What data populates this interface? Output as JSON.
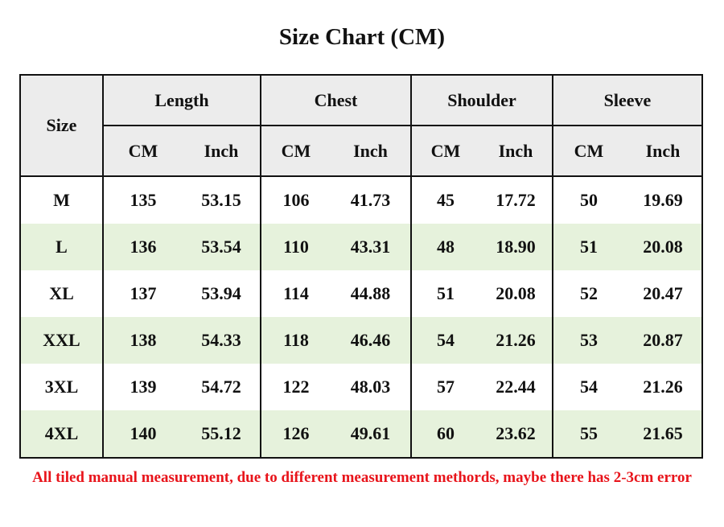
{
  "title": "Size Chart (CM)",
  "table": {
    "corner": "Size",
    "groups": [
      {
        "label": "Length",
        "units": [
          "CM",
          "Inch"
        ]
      },
      {
        "label": "Chest",
        "units": [
          "CM",
          "Inch"
        ]
      },
      {
        "label": "Shoulder",
        "units": [
          "CM",
          "Inch"
        ]
      },
      {
        "label": "Sleeve",
        "units": [
          "CM",
          "Inch"
        ]
      }
    ],
    "rows": [
      [
        "M",
        "135",
        "53.15",
        "106",
        "41.73",
        "45",
        "17.72",
        "50",
        "19.69"
      ],
      [
        "L",
        "136",
        "53.54",
        "110",
        "43.31",
        "48",
        "18.90",
        "51",
        "20.08"
      ],
      [
        "XL",
        "137",
        "53.94",
        "114",
        "44.88",
        "51",
        "20.08",
        "52",
        "20.47"
      ],
      [
        "XXL",
        "138",
        "54.33",
        "118",
        "46.46",
        "54",
        "21.26",
        "53",
        "20.87"
      ],
      [
        "3XL",
        "139",
        "54.72",
        "122",
        "48.03",
        "57",
        "22.44",
        "54",
        "21.26"
      ],
      [
        "4XL",
        "140",
        "55.12",
        "126",
        "49.61",
        "60",
        "23.62",
        "55",
        "21.65"
      ]
    ]
  },
  "note": "All tiled manual measurement, due to different measurement methords, maybe there has 2-3cm error"
}
